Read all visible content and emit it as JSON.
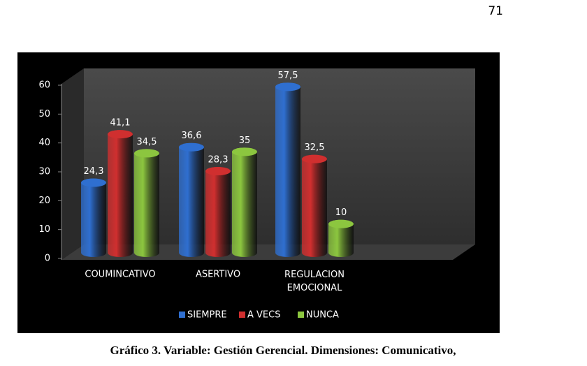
{
  "page_number": "71",
  "caption": "Gráfico 3. Variable: Gestión Gerencial. Dimensiones: Comunicativo,",
  "chart_data": {
    "type": "bar",
    "categories": [
      "COUMINCATIVO",
      "ASERTIVO",
      "REGULACION EMOCIONAL"
    ],
    "series": [
      {
        "name": "SIEMPRE",
        "color": "#2f6fd0",
        "values": [
          24.3,
          36.6,
          57.5
        ],
        "value_labels": [
          "24,3",
          "36,6",
          "57,5"
        ]
      },
      {
        "name": "A VECS",
        "color": "#d02f2f",
        "values": [
          41.1,
          28.3,
          32.5
        ],
        "value_labels": [
          "41,1",
          "28,3",
          "32,5"
        ]
      },
      {
        "name": "NUNCA",
        "color": "#8cc63f",
        "values": [
          34.5,
          35,
          10
        ],
        "value_labels": [
          "34,5",
          "35",
          "10"
        ]
      }
    ],
    "ylim": [
      0,
      60
    ],
    "yticks": [
      0,
      10,
      20,
      30,
      40,
      50,
      60
    ],
    "legend": "bottom"
  }
}
